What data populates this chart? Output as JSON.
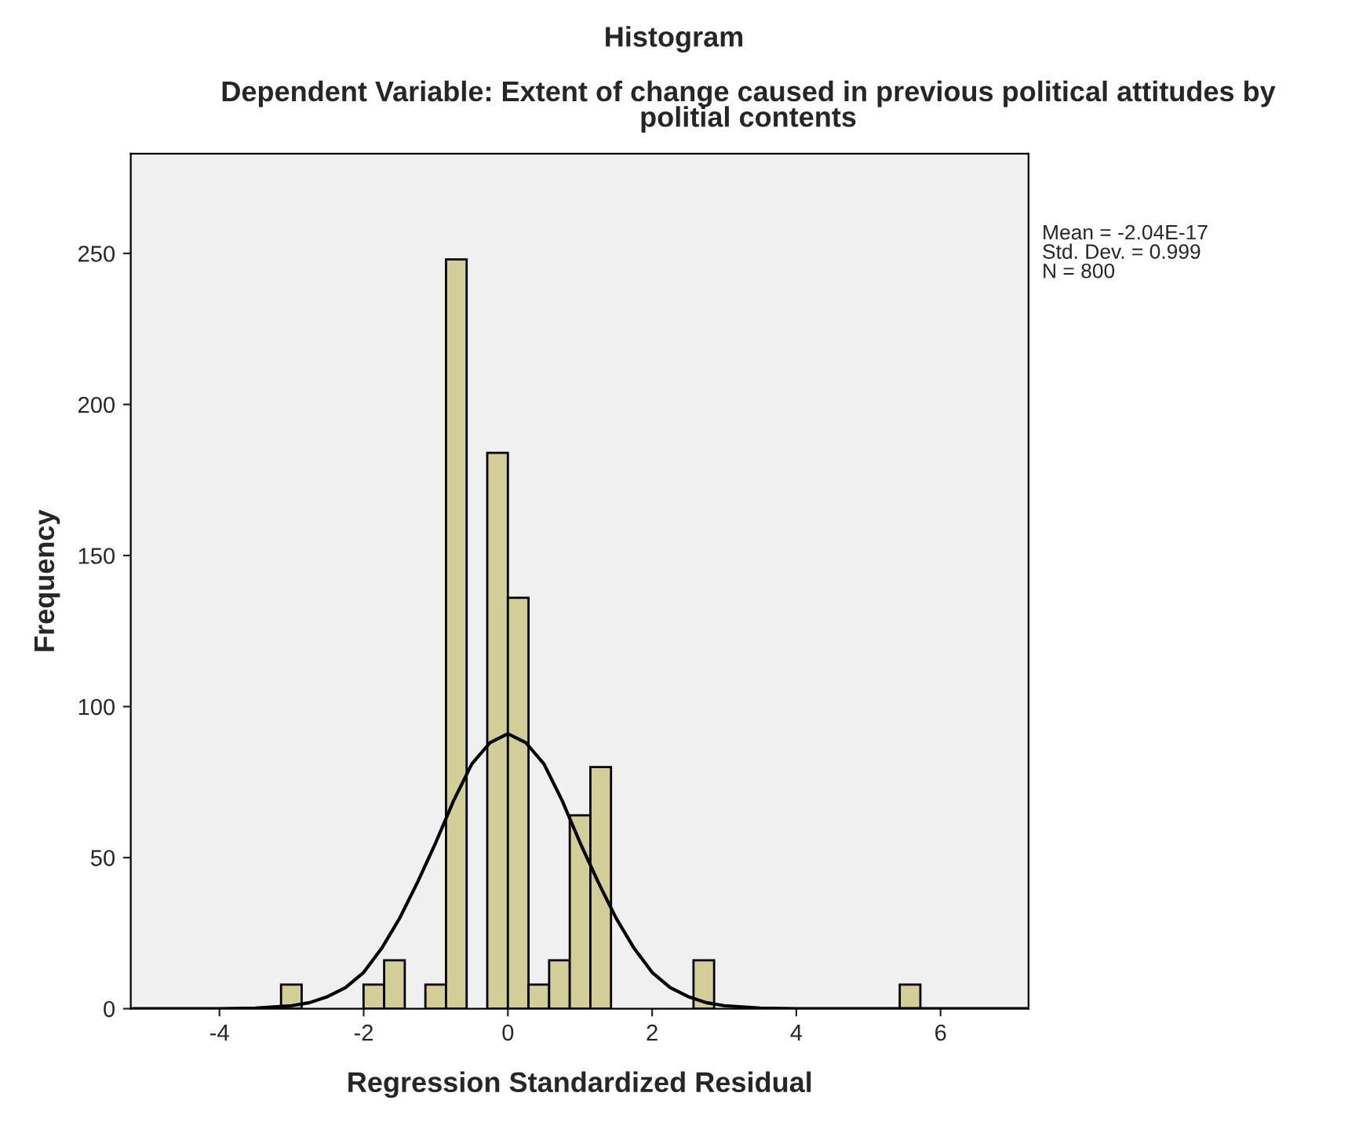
{
  "chart_data": {
    "type": "histogram",
    "title": "Histogram",
    "subtitle": "Dependent Variable: Extent of change caused in previous political attitudes by\npolitial contents",
    "xlabel": "Regression Standardized Residual",
    "ylabel": "Frequency",
    "bins": [
      -3.146,
      -2.86,
      -2.574,
      -2.288,
      -2.002,
      -1.716,
      -1.43,
      -1.144,
      -0.858,
      -0.572,
      -0.286,
      0,
      0.286,
      0.572,
      0.858,
      1.144,
      1.43,
      1.716,
      2.002,
      2.288,
      2.574,
      2.86,
      3.146,
      3.432,
      3.718,
      4.004,
      4.29,
      4.576,
      4.862,
      5.148,
      5.434,
      5.72
    ],
    "values": [
      8,
      0,
      0,
      0,
      8,
      16,
      0,
      8,
      248,
      0,
      184,
      136,
      8,
      16,
      64,
      80,
      0,
      0,
      0,
      0,
      16,
      0,
      0,
      0,
      0,
      0,
      0,
      0,
      0,
      0,
      8
    ],
    "color": "#d3ce97",
    "series": [
      {
        "type": "line",
        "color": "#000000",
        "x": [
          -5.2,
          -4.5,
          -4,
          -3.5,
          -3,
          -2.75,
          -2.5,
          -2.25,
          -2,
          -1.75,
          -1.5,
          -1.25,
          -1,
          -0.75,
          -0.5,
          -0.25,
          0,
          0.25,
          0.5,
          0.75,
          1,
          1.25,
          1.5,
          1.75,
          2,
          2.25,
          2.5,
          2.75,
          3,
          3.5,
          4,
          4.5,
          5.2,
          6,
          7.2
        ],
        "values": [
          0,
          0,
          0,
          0.2,
          1,
          2,
          4,
          7,
          12,
          20,
          30,
          42,
          55,
          69,
          81,
          88,
          91,
          88,
          81,
          69,
          55,
          42,
          30,
          20,
          12,
          7,
          4,
          2,
          1,
          0.2,
          0,
          0,
          0,
          0,
          0
        ]
      }
    ],
    "xlim": [
      -5.23,
      7.22
    ],
    "xticks": [
      -4,
      -2,
      0,
      2,
      4,
      6
    ],
    "ylim": [
      0,
      283
    ],
    "yticks": [
      0,
      50,
      100,
      150,
      200,
      250
    ],
    "annotations": [
      "Mean = -2.04E-17\nStd. Dev. = 0.999\nN = 800"
    ],
    "grid": false,
    "legend": false
  }
}
